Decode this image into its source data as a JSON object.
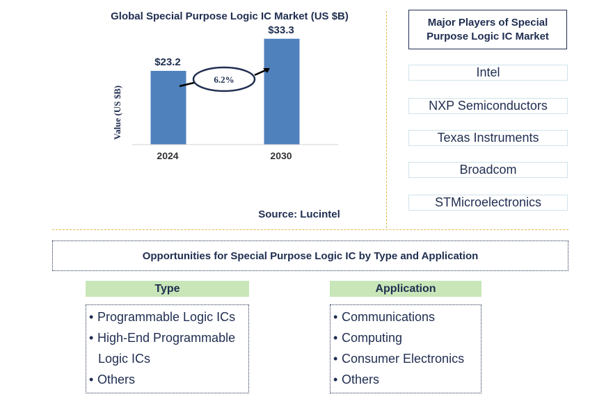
{
  "chart_data": {
    "type": "bar",
    "title": "Global Special Purpose Logic IC Market (US $B)",
    "ylabel": "Value (US $B)",
    "categories": [
      "2024",
      "2030"
    ],
    "values": [
      23.2,
      33.3
    ],
    "data_labels": [
      "$23.2",
      "$33.3"
    ],
    "growth_label": "6.2%",
    "bar_color": "#4f81bd",
    "ylim": [
      0,
      35
    ]
  },
  "source": "Source: Lucintel",
  "players": {
    "title": "Major Players of Special Purpose Logic IC Market",
    "items": [
      "Intel",
      "NXP Semiconductors",
      "Texas Instruments",
      "Broadcom",
      "STMicroelectronics"
    ]
  },
  "opportunities": {
    "title": "Opportunities for Special Purpose Logic IC by Type and Application",
    "type": {
      "header": "Type",
      "items": [
        "Programmable Logic ICs",
        "High-End Programmable Logic ICs",
        "Others"
      ]
    },
    "application": {
      "header": "Application",
      "items": [
        "Communications",
        "Computing",
        "Consumer Electronics",
        "Others"
      ]
    }
  }
}
